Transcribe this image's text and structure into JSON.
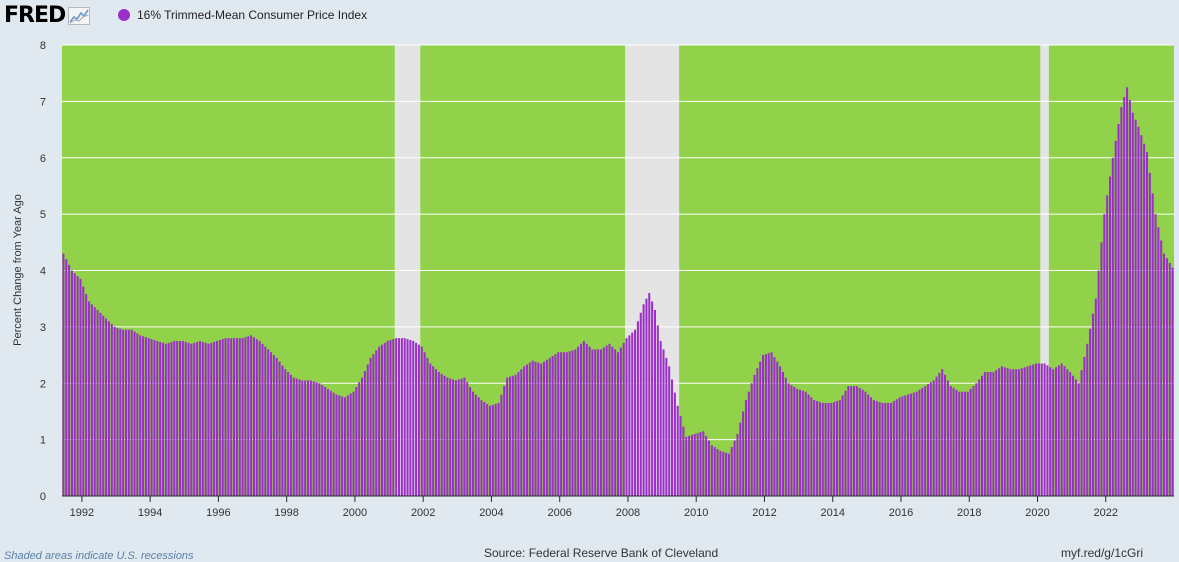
{
  "header": {
    "logo_text": "FRED",
    "logo_icon": "chart-trend-icon",
    "legend_label": "16% Trimmed-Mean Consumer Price Index"
  },
  "colors": {
    "series": "#9b2fc9",
    "plot_background": "#92d24a",
    "recession": "#e4e4e4",
    "page_background": "#e1e9f0",
    "gridline": "#ffffff"
  },
  "footer": {
    "note": "Shaded areas indicate U.S. recessions",
    "source": "Source: Federal Reserve Bank of Cleveland",
    "link": "myf.red/g/1cGri"
  },
  "chart_data": {
    "type": "bar",
    "title": "",
    "xlabel": "",
    "ylabel": "Percent Change from Year Ago",
    "ylim": [
      0,
      8
    ],
    "yticks": [
      0,
      1,
      2,
      3,
      4,
      5,
      6,
      7,
      8
    ],
    "xlim": [
      "1991-06",
      "2023-12"
    ],
    "xticks": [
      "1992",
      "1994",
      "1996",
      "1998",
      "2000",
      "2002",
      "2004",
      "2006",
      "2008",
      "2010",
      "2012",
      "2014",
      "2016",
      "2018",
      "2020",
      "2022"
    ],
    "grid": "horizontal",
    "frequency": "monthly",
    "recessions": [
      [
        "2001-03",
        "2001-11"
      ],
      [
        "2007-12",
        "2009-06"
      ],
      [
        "2020-02",
        "2020-04"
      ]
    ],
    "series": [
      {
        "name": "16% Trimmed-Mean Consumer Price Index",
        "points": [
          [
            "1991-06",
            4.3
          ],
          [
            "1991-09",
            4.0
          ],
          [
            "1991-12",
            3.85
          ],
          [
            "1992-03",
            3.45
          ],
          [
            "1992-06",
            3.3
          ],
          [
            "1992-09",
            3.15
          ],
          [
            "1992-12",
            3.0
          ],
          [
            "1993-03",
            2.95
          ],
          [
            "1993-06",
            2.95
          ],
          [
            "1993-09",
            2.85
          ],
          [
            "1993-12",
            2.8
          ],
          [
            "1994-03",
            2.75
          ],
          [
            "1994-06",
            2.7
          ],
          [
            "1994-09",
            2.75
          ],
          [
            "1994-12",
            2.75
          ],
          [
            "1995-03",
            2.7
          ],
          [
            "1995-06",
            2.75
          ],
          [
            "1995-09",
            2.7
          ],
          [
            "1995-12",
            2.75
          ],
          [
            "1996-03",
            2.8
          ],
          [
            "1996-06",
            2.8
          ],
          [
            "1996-09",
            2.8
          ],
          [
            "1996-12",
            2.85
          ],
          [
            "1997-03",
            2.75
          ],
          [
            "1997-06",
            2.6
          ],
          [
            "1997-09",
            2.45
          ],
          [
            "1997-12",
            2.25
          ],
          [
            "1998-03",
            2.1
          ],
          [
            "1998-06",
            2.05
          ],
          [
            "1998-09",
            2.05
          ],
          [
            "1998-12",
            2.0
          ],
          [
            "1999-03",
            1.9
          ],
          [
            "1999-06",
            1.8
          ],
          [
            "1999-09",
            1.75
          ],
          [
            "1999-12",
            1.85
          ],
          [
            "2000-03",
            2.1
          ],
          [
            "2000-06",
            2.45
          ],
          [
            "2000-09",
            2.65
          ],
          [
            "2000-12",
            2.75
          ],
          [
            "2001-03",
            2.8
          ],
          [
            "2001-06",
            2.8
          ],
          [
            "2001-09",
            2.75
          ],
          [
            "2001-12",
            2.65
          ],
          [
            "2002-03",
            2.35
          ],
          [
            "2002-06",
            2.2
          ],
          [
            "2002-09",
            2.1
          ],
          [
            "2002-12",
            2.05
          ],
          [
            "2003-03",
            2.1
          ],
          [
            "2003-06",
            1.85
          ],
          [
            "2003-09",
            1.7
          ],
          [
            "2003-12",
            1.6
          ],
          [
            "2004-03",
            1.65
          ],
          [
            "2004-06",
            2.1
          ],
          [
            "2004-09",
            2.15
          ],
          [
            "2004-12",
            2.3
          ],
          [
            "2005-03",
            2.4
          ],
          [
            "2005-06",
            2.35
          ],
          [
            "2005-09",
            2.45
          ],
          [
            "2005-12",
            2.55
          ],
          [
            "2006-03",
            2.55
          ],
          [
            "2006-06",
            2.6
          ],
          [
            "2006-09",
            2.75
          ],
          [
            "2006-12",
            2.6
          ],
          [
            "2007-03",
            2.6
          ],
          [
            "2007-06",
            2.7
          ],
          [
            "2007-09",
            2.55
          ],
          [
            "2007-12",
            2.8
          ],
          [
            "2008-03",
            2.95
          ],
          [
            "2008-06",
            3.4
          ],
          [
            "2008-08",
            3.6
          ],
          [
            "2008-10",
            3.3
          ],
          [
            "2008-12",
            2.75
          ],
          [
            "2009-03",
            2.3
          ],
          [
            "2009-06",
            1.6
          ],
          [
            "2009-09",
            1.05
          ],
          [
            "2009-12",
            1.1
          ],
          [
            "2010-03",
            1.15
          ],
          [
            "2010-06",
            0.9
          ],
          [
            "2010-09",
            0.8
          ],
          [
            "2010-12",
            0.75
          ],
          [
            "2011-03",
            1.1
          ],
          [
            "2011-06",
            1.7
          ],
          [
            "2011-09",
            2.15
          ],
          [
            "2011-12",
            2.5
          ],
          [
            "2012-03",
            2.55
          ],
          [
            "2012-06",
            2.3
          ],
          [
            "2012-09",
            2.0
          ],
          [
            "2012-12",
            1.9
          ],
          [
            "2013-03",
            1.85
          ],
          [
            "2013-06",
            1.7
          ],
          [
            "2013-09",
            1.65
          ],
          [
            "2013-12",
            1.65
          ],
          [
            "2014-03",
            1.7
          ],
          [
            "2014-06",
            1.95
          ],
          [
            "2014-09",
            1.95
          ],
          [
            "2014-12",
            1.85
          ],
          [
            "2015-03",
            1.7
          ],
          [
            "2015-06",
            1.65
          ],
          [
            "2015-09",
            1.65
          ],
          [
            "2015-12",
            1.75
          ],
          [
            "2016-03",
            1.8
          ],
          [
            "2016-06",
            1.85
          ],
          [
            "2016-09",
            1.95
          ],
          [
            "2016-12",
            2.05
          ],
          [
            "2017-03",
            2.25
          ],
          [
            "2017-06",
            1.95
          ],
          [
            "2017-09",
            1.85
          ],
          [
            "2017-12",
            1.85
          ],
          [
            "2018-03",
            2.0
          ],
          [
            "2018-06",
            2.2
          ],
          [
            "2018-09",
            2.2
          ],
          [
            "2018-12",
            2.3
          ],
          [
            "2019-03",
            2.25
          ],
          [
            "2019-06",
            2.25
          ],
          [
            "2019-09",
            2.3
          ],
          [
            "2019-12",
            2.35
          ],
          [
            "2020-03",
            2.35
          ],
          [
            "2020-06",
            2.25
          ],
          [
            "2020-09",
            2.35
          ],
          [
            "2020-12",
            2.2
          ],
          [
            "2021-03",
            2.0
          ],
          [
            "2021-06",
            2.7
          ],
          [
            "2021-09",
            3.5
          ],
          [
            "2021-12",
            5.0
          ],
          [
            "2022-03",
            6.0
          ],
          [
            "2022-06",
            6.9
          ],
          [
            "2022-08",
            7.25
          ],
          [
            "2022-10",
            6.8
          ],
          [
            "2022-12",
            6.55
          ],
          [
            "2023-03",
            6.1
          ],
          [
            "2023-06",
            5.0
          ],
          [
            "2023-09",
            4.3
          ],
          [
            "2023-12",
            4.05
          ]
        ]
      }
    ]
  }
}
